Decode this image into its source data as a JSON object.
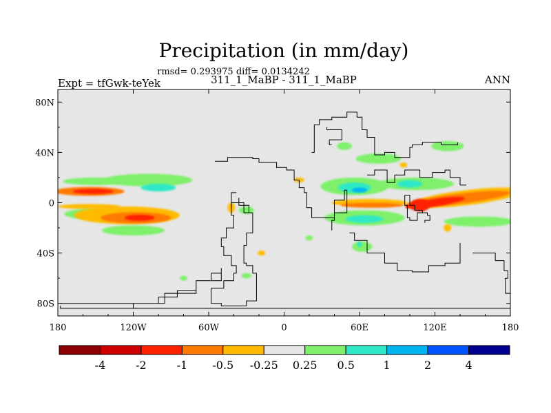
{
  "chart_data": {
    "type": "heatmap",
    "title": "Precipitation (in mm/day)",
    "stats_line": "rmsd= 0.293975 diff= 0.0134242",
    "subtitle": "311_1_MaBP - 311_1_MaBP",
    "left_label": "Expt = tfGwk-teYek",
    "right_label": "ANN",
    "xlim": [
      -180,
      180
    ],
    "ylim": [
      -90,
      90
    ],
    "x_ticks": [
      {
        "value": -180,
        "label": "180"
      },
      {
        "value": -120,
        "label": "120W"
      },
      {
        "value": -60,
        "label": "60W"
      },
      {
        "value": 0,
        "label": "0"
      },
      {
        "value": 60,
        "label": "60E"
      },
      {
        "value": 120,
        "label": "120E"
      },
      {
        "value": 180,
        "label": "180"
      }
    ],
    "y_ticks": [
      {
        "value": 80,
        "label": "80N"
      },
      {
        "value": 40,
        "label": "40N"
      },
      {
        "value": 0,
        "label": "0"
      },
      {
        "value": -40,
        "label": "40S"
      },
      {
        "value": -80,
        "label": "80S"
      }
    ],
    "legend": {
      "levels": [
        "-4",
        "-2",
        "-1",
        "-0.5",
        "-0.25",
        "0.25",
        "0.5",
        "1",
        "2",
        "4"
      ],
      "colors": [
        "#8b0000",
        "#cc0000",
        "#ff2200",
        "#ff7a00",
        "#ffbb00",
        "#e6e6e6",
        "#7ef06b",
        "#2ee8c8",
        "#00b4f0",
        "#0055ff",
        "#000090"
      ]
    },
    "background_color": "#e6e6e6",
    "anomaly_regions": [
      {
        "lon": -155,
        "lat": 9,
        "rlon": 28,
        "rlat": 3.5,
        "value": -0.7,
        "rot": 0
      },
      {
        "lon": -152,
        "lat": 9,
        "rlon": 16,
        "rlat": 2,
        "value": -1.3,
        "rot": 0
      },
      {
        "lon": -150,
        "lat": 17,
        "rlon": 26,
        "rlat": 3,
        "value": 0.35,
        "rot": 0
      },
      {
        "lon": -108,
        "lat": 18,
        "rlon": 35,
        "rlat": 5,
        "value": 0.35,
        "rot": 0
      },
      {
        "lon": -100,
        "lat": 12,
        "rlon": 14,
        "rlat": 3,
        "value": 0.7,
        "rot": 0
      },
      {
        "lon": -140,
        "lat": -9,
        "rlon": 35,
        "rlat": 5,
        "value": 0.35,
        "rot": 0
      },
      {
        "lon": -125,
        "lat": -10,
        "rlon": 42,
        "rlat": 7,
        "value": -0.35,
        "rot": 0
      },
      {
        "lon": -118,
        "lat": -12,
        "rlon": 28,
        "rlat": 4.5,
        "value": -0.7,
        "rot": 0
      },
      {
        "lon": -115,
        "lat": -12,
        "rlon": 12,
        "rlat": 2.5,
        "value": -1.4,
        "rot": 0
      },
      {
        "lon": -120,
        "lat": -22,
        "rlon": 25,
        "rlat": 4,
        "value": 0.35,
        "rot": 0
      },
      {
        "lon": -155,
        "lat": -3,
        "rlon": 25,
        "rlat": 2,
        "value": -0.35,
        "rot": 0
      },
      {
        "lon": -42,
        "lat": -4,
        "rlon": 3,
        "rlat": 4,
        "value": -0.35,
        "rot": 0
      },
      {
        "lon": -30,
        "lat": -6,
        "rlon": 6,
        "rlat": 3,
        "value": 0.35,
        "rot": 0
      },
      {
        "lon": -18,
        "lat": -40,
        "rlon": 3,
        "rlat": 2,
        "value": -0.35,
        "rot": 0
      },
      {
        "lon": 12,
        "lat": 18,
        "rlon": 4,
        "rlat": 2,
        "value": -0.35,
        "rot": 0
      },
      {
        "lon": 56,
        "lat": 13,
        "rlon": 27,
        "rlat": 7,
        "value": 0.35,
        "rot": 0
      },
      {
        "lon": 56,
        "lat": 12,
        "rlon": 13,
        "rlat": 4,
        "value": 0.7,
        "rot": 0
      },
      {
        "lon": 60,
        "lat": 10,
        "rlon": 6,
        "rlat": 2,
        "value": 1.4,
        "rot": 0
      },
      {
        "lon": 105,
        "lat": 15,
        "rlon": 30,
        "rlat": 5,
        "value": 0.35,
        "rot": 0
      },
      {
        "lon": 100,
        "lat": 15,
        "rlon": 10,
        "rlat": 3,
        "value": 0.7,
        "rot": 0
      },
      {
        "lon": 75,
        "lat": 35,
        "rlon": 18,
        "rlat": 4,
        "value": 0.35,
        "rot": 0
      },
      {
        "lon": 130,
        "lat": 45,
        "rlon": 13,
        "rlat": 4,
        "value": 0.35,
        "rot": 0
      },
      {
        "lon": 48,
        "lat": 45,
        "rlon": 6,
        "rlat": 3,
        "value": 0.35,
        "rot": 0
      },
      {
        "lon": 68,
        "lat": 0,
        "rlon": 30,
        "rlat": 3,
        "value": -0.35,
        "rot": 0
      },
      {
        "lon": 70,
        "lat": -2,
        "rlon": 25,
        "rlat": 2,
        "value": -0.7,
        "rot": 0
      },
      {
        "lon": 64,
        "lat": -12,
        "rlon": 32,
        "rlat": 6,
        "value": 0.35,
        "rot": 0
      },
      {
        "lon": 64,
        "lat": -13,
        "rlon": 15,
        "rlat": 3,
        "value": 0.7,
        "rot": 0
      },
      {
        "lon": 145,
        "lat": 4,
        "rlon": 45,
        "rlat": 6,
        "value": -0.35,
        "rot": -0.12
      },
      {
        "lon": 138,
        "lat": 3,
        "rlon": 42,
        "rlat": 4,
        "value": -0.7,
        "rot": -0.12
      },
      {
        "lon": 120,
        "lat": 0,
        "rlon": 24,
        "rlat": 3,
        "value": -1.4,
        "rot": -0.15
      },
      {
        "lon": 108,
        "lat": -2,
        "rlon": 8,
        "rlat": 5,
        "value": -1.4,
        "rot": 0
      },
      {
        "lon": 155,
        "lat": -15,
        "rlon": 28,
        "rlat": 4,
        "value": 0.35,
        "rot": 0
      },
      {
        "lon": 62,
        "lat": -35,
        "rlon": 8,
        "rlat": 4,
        "value": 0.35,
        "rot": 0
      },
      {
        "lon": 60,
        "lat": -33,
        "rlon": 2,
        "rlat": 2,
        "value": 0.7,
        "rot": 0
      },
      {
        "lon": 20,
        "lat": -28,
        "rlon": 3,
        "rlat": 2,
        "value": 0.35,
        "rot": 0
      },
      {
        "lon": 130,
        "lat": -20,
        "rlon": 3,
        "rlat": 3,
        "value": -0.35,
        "rot": 0
      },
      {
        "lon": -80,
        "lat": -60,
        "rlon": 3,
        "rlat": 2,
        "value": 0.35,
        "rot": 0
      },
      {
        "lon": -30,
        "lat": -58,
        "rlon": 4,
        "rlat": 2,
        "value": 0.35,
        "rot": 0
      },
      {
        "lon": 95,
        "lat": 30,
        "rlon": 3,
        "rlat": 2,
        "value": -0.35,
        "rot": 0
      }
    ],
    "coastlines": [
      [
        [
          -178,
          -82
        ],
        [
          -178,
          -84
        ],
        [
          180,
          -84
        ]
      ],
      [
        [
          -178,
          -80
        ],
        [
          -125,
          -80
        ],
        [
          -100,
          -75
        ],
        [
          -85,
          -70
        ],
        [
          -70,
          -62
        ],
        [
          -58,
          -56
        ],
        [
          -50,
          -52
        ],
        [
          -50,
          -62
        ],
        [
          -70,
          -72
        ],
        [
          -95,
          -80
        ],
        [
          -120,
          -84
        ]
      ],
      [
        [
          -55,
          33
        ],
        [
          -45,
          36
        ],
        [
          -25,
          35
        ],
        [
          -20,
          32
        ],
        [
          -12,
          32
        ],
        [
          -6,
          28
        ],
        [
          2,
          26
        ],
        [
          8,
          18
        ],
        [
          12,
          12
        ],
        [
          16,
          8
        ],
        [
          18,
          -4
        ],
        [
          22,
          -12
        ],
        [
          28,
          -12
        ],
        [
          40,
          2
        ],
        [
          48,
          10
        ],
        [
          50,
          -8
        ],
        [
          40,
          -14
        ],
        [
          38,
          -22
        ]
      ],
      [
        [
          -38,
          8
        ],
        [
          -42,
          -10
        ],
        [
          -40,
          -20
        ],
        [
          -46,
          -28
        ],
        [
          -50,
          -35
        ],
        [
          -48,
          -42
        ],
        [
          -42,
          -50
        ],
        [
          -38,
          -56
        ],
        [
          -40,
          -62
        ],
        [
          -48,
          -68
        ],
        [
          -58,
          -80
        ],
        [
          -50,
          -82
        ],
        [
          -30,
          -78
        ],
        [
          -22,
          -70
        ],
        [
          -22,
          -56
        ],
        [
          -25,
          -50
        ],
        [
          -30,
          -48
        ],
        [
          -32,
          -34
        ],
        [
          -30,
          -24
        ],
        [
          -25,
          -8
        ],
        [
          -28,
          -2
        ],
        [
          -36,
          4
        ]
      ],
      [
        [
          -28,
          -8
        ],
        [
          -32,
          0
        ],
        [
          -42,
          -4
        ]
      ],
      [
        [
          22,
          40
        ],
        [
          24,
          62
        ],
        [
          28,
          66
        ],
        [
          38,
          68
        ],
        [
          50,
          72
        ],
        [
          58,
          68
        ],
        [
          62,
          58
        ],
        [
          66,
          52
        ],
        [
          72,
          38
        ],
        [
          80,
          40
        ],
        [
          88,
          36
        ],
        [
          100,
          44
        ],
        [
          102,
          46
        ],
        [
          110,
          48
        ],
        [
          125,
          46
        ],
        [
          138,
          48
        ]
      ],
      [
        [
          38,
          46
        ],
        [
          36,
          50
        ],
        [
          46,
          58
        ],
        [
          34,
          60
        ]
      ],
      [
        [
          66,
          22
        ],
        [
          72,
          26
        ],
        [
          82,
          16
        ],
        [
          88,
          22
        ],
        [
          96,
          26
        ],
        [
          108,
          20
        ],
        [
          118,
          24
        ],
        [
          128,
          26
        ],
        [
          132,
          20
        ],
        [
          140,
          14
        ],
        [
          145,
          14
        ]
      ],
      [
        [
          96,
          6
        ],
        [
          100,
          4
        ],
        [
          100,
          -2
        ],
        [
          104,
          -6
        ],
        [
          110,
          -8
        ],
        [
          106,
          -14
        ],
        [
          100,
          -12
        ],
        [
          98,
          -2
        ],
        [
          96,
          6
        ]
      ],
      [
        [
          110,
          -8
        ],
        [
          114,
          -10
        ],
        [
          116,
          -14
        ],
        [
          112,
          -16
        ]
      ],
      [
        [
          52,
          -24
        ],
        [
          56,
          -30
        ],
        [
          66,
          -40
        ],
        [
          80,
          -48
        ],
        [
          90,
          -54
        ],
        [
          102,
          -55
        ],
        [
          115,
          -50
        ],
        [
          128,
          -48
        ],
        [
          140,
          -38
        ],
        [
          140,
          -32
        ]
      ],
      [
        [
          150,
          -40
        ],
        [
          160,
          -40
        ],
        [
          168,
          -46
        ],
        [
          175,
          -54
        ],
        [
          178,
          -60
        ],
        [
          176,
          -72
        ],
        [
          180,
          -78
        ]
      ]
    ]
  }
}
